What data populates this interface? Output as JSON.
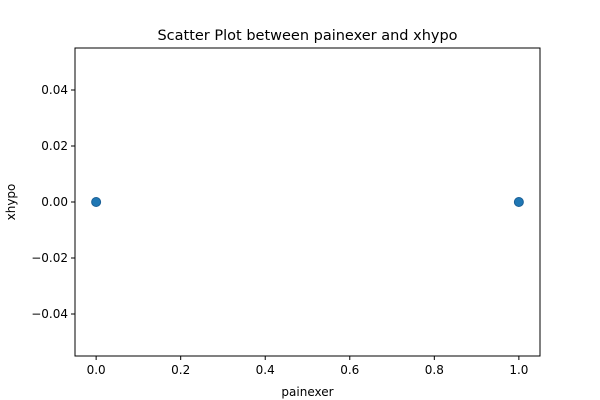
{
  "chart_data": {
    "type": "scatter",
    "title": "Scatter Plot between painexer and xhypo",
    "xlabel": "painexer",
    "ylabel": "xhypo",
    "xlim": [
      -0.05,
      1.05
    ],
    "ylim": [
      -0.055,
      0.055
    ],
    "x_ticks": [
      0.0,
      0.2,
      0.4,
      0.6,
      0.8,
      1.0
    ],
    "x_tick_labels": [
      "0.0",
      "0.2",
      "0.4",
      "0.6",
      "0.8",
      "1.0"
    ],
    "y_ticks": [
      -0.04,
      -0.02,
      0.0,
      0.02,
      0.04
    ],
    "y_tick_labels": [
      "−0.04",
      "−0.02",
      "0.00",
      "0.02",
      "0.04"
    ],
    "grid": false,
    "points": [
      {
        "x": 0,
        "y": 0
      },
      {
        "x": 1,
        "y": 0
      }
    ],
    "colors": {
      "marker_fill": "#1f77b4",
      "marker_edge": "#1a5f96",
      "axis": "#000000",
      "background": "#ffffff"
    }
  }
}
